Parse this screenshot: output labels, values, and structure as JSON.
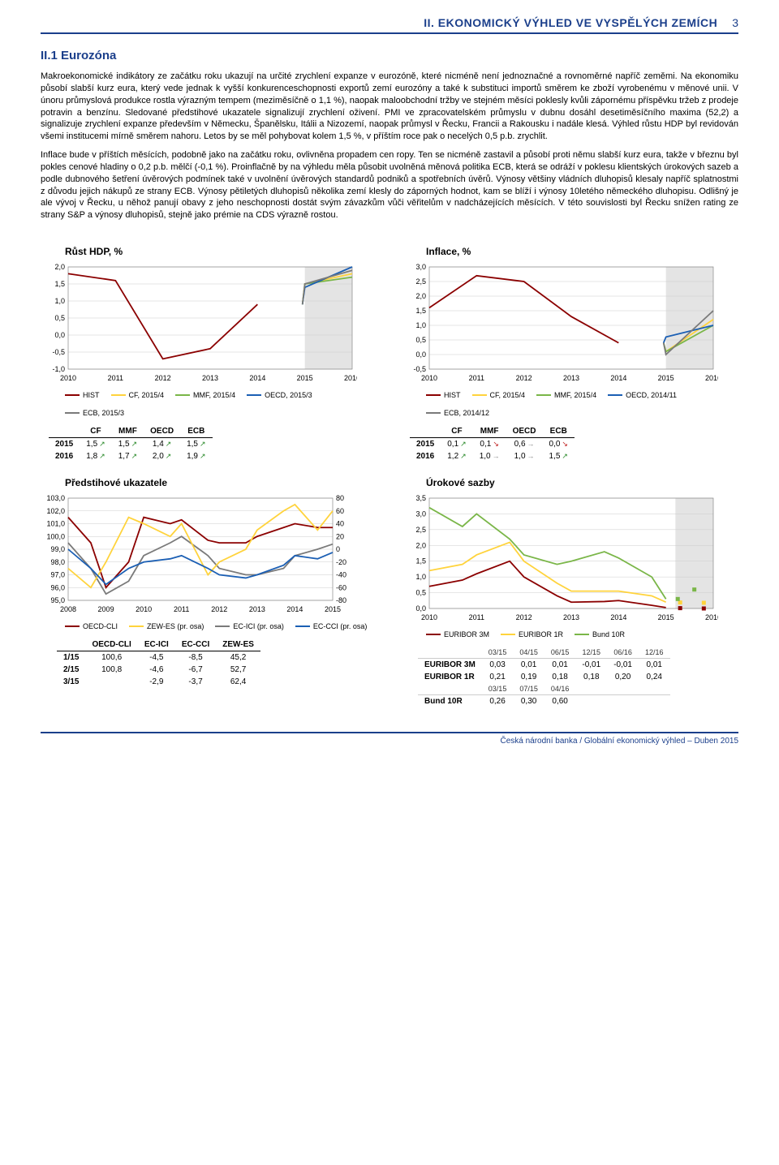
{
  "header": {
    "title": "II. EKONOMICKÝ VÝHLED VE VYSPĚLÝCH ZEMÍCH",
    "page_number": "3"
  },
  "section": {
    "heading": "II.1 Eurozóna",
    "paragraphs": [
      "Makroekonomické indikátory ze začátku roku ukazují na určité zrychlení expanze v eurozóně, které nicméně není jednoznačné a rovnoměrné napříč zeměmi. Na ekonomiku působí slabší kurz eura, který vede jednak k vyšší konkurenceschopnosti exportů zemí eurozóny a také k substituci importů směrem ke zboží vyrobenému v měnové unii. V únoru průmyslová produkce rostla výrazným tempem (meziměsíčně o 1,1 %), naopak maloobchodní tržby ve stejném měsíci poklesly kvůli zápornému příspěvku tržeb z prodeje potravin a benzínu. Sledované předstihové ukazatele signalizují zrychlení oživení. PMI ve zpracovatelském průmyslu v dubnu dosáhl desetiměsíčního maxima (52,2) a signalizuje zrychlení expanze především v Německu, Španělsku, Itálii a Nizozemí, naopak průmysl v Řecku, Francii a Rakousku i nadále klesá. Výhled růstu HDP byl revidován všemi institucemi mírně směrem nahoru. Letos by se měl pohybovat kolem 1,5 %, v příštím roce pak o necelých 0,5 p.b. zrychlit.",
      "Inflace bude v příštích měsících, podobně jako na začátku roku, ovlivněna propadem cen ropy. Ten se nicméně zastavil a působí proti němu slabší kurz eura, takže v březnu byl pokles cenové hladiny o 0,2 p.b. mělčí (-0,1 %). Proinflačně by na výhledu měla působit uvolněná měnová politika ECB, která se odráží v poklesu klientských úrokových sazeb a podle dubnového šetření úvěrových podmínek také v uvolnění úvěrových standardů podniků a spotřebních úvěrů. Výnosy většiny vládních dluhopisů klesaly napříč splatnostmi z důvodu jejich nákupů ze strany ECB. Výnosy pětiletých dluhopisů několika zemí klesly do záporných hodnot, kam se blíží i výnosy 10letého německého dluhopisu. Odlišný je ale vývoj v Řecku, u něhož panují obavy z jeho neschopnosti dostát svým závazkům vůči věřitelům v nadcházejících měsících. V této souvislosti byl Řecku snížen rating ze strany S&P a výnosy dluhopisů, stejně jako prémie na CDS výrazně rostou."
    ]
  },
  "gdp_chart": {
    "title": "Růst HDP, %",
    "x_years": [
      2010,
      2011,
      2012,
      2013,
      2014,
      2015,
      2016
    ],
    "ylim": [
      -1.0,
      2.0
    ],
    "yticks": [
      -1.0,
      -0.5,
      0.0,
      0.5,
      1.0,
      1.5,
      2.0
    ],
    "forecast_start": 2015,
    "series": {
      "HIST": {
        "color": "#8b0000",
        "points": [
          [
            2010,
            1.8
          ],
          [
            2011,
            1.6
          ],
          [
            2012,
            -0.7
          ],
          [
            2013,
            -0.4
          ],
          [
            2014,
            0.9
          ]
        ]
      },
      "CF_2015_4": {
        "color": "#ffd33c",
        "points": [
          [
            2014.95,
            0.9
          ],
          [
            2015,
            1.5
          ],
          [
            2016,
            1.8
          ]
        ]
      },
      "MMF_2015_4": {
        "color": "#7ab648",
        "points": [
          [
            2014.95,
            0.9
          ],
          [
            2015,
            1.5
          ],
          [
            2016,
            1.7
          ]
        ]
      },
      "OECD_2015_3": {
        "color": "#1b5fb4",
        "points": [
          [
            2014.95,
            0.9
          ],
          [
            2015,
            1.4
          ],
          [
            2016,
            2.0
          ]
        ]
      },
      "ECB_2015_3": {
        "color": "#7a7a7a",
        "points": [
          [
            2014.95,
            0.9
          ],
          [
            2015,
            1.5
          ],
          [
            2016,
            1.9
          ]
        ]
      }
    },
    "legend": [
      {
        "label": "HIST",
        "color": "#8b0000"
      },
      {
        "label": "CF, 2015/4",
        "color": "#ffd33c"
      },
      {
        "label": "MMF, 2015/4",
        "color": "#7ab648"
      },
      {
        "label": "OECD, 2015/3",
        "color": "#1b5fb4"
      },
      {
        "label": "ECB, 2015/3",
        "color": "#7a7a7a"
      }
    ],
    "table": {
      "columns": [
        "CF",
        "MMF",
        "OECD",
        "ECB"
      ],
      "rows": [
        {
          "year": "2015",
          "vals": [
            "1,5",
            "1,5",
            "1,4",
            "1,5"
          ],
          "arrows": [
            "up",
            "up",
            "up",
            "up"
          ]
        },
        {
          "year": "2016",
          "vals": [
            "1,8",
            "1,7",
            "2,0",
            "1,9"
          ],
          "arrows": [
            "up",
            "up",
            "up",
            "up"
          ]
        }
      ]
    }
  },
  "inflation_chart": {
    "title": "Inflace, %",
    "x_years": [
      2010,
      2011,
      2012,
      2013,
      2014,
      2015,
      2016
    ],
    "ylim": [
      -0.5,
      3.0
    ],
    "yticks": [
      -0.5,
      0.0,
      0.5,
      1.0,
      1.5,
      2.0,
      2.5,
      3.0
    ],
    "forecast_start": 2015,
    "series": {
      "HIST": {
        "color": "#8b0000",
        "points": [
          [
            2010,
            1.6
          ],
          [
            2011,
            2.7
          ],
          [
            2012,
            2.5
          ],
          [
            2013,
            1.3
          ],
          [
            2014,
            0.4
          ]
        ]
      },
      "CF_2015_4": {
        "color": "#ffd33c",
        "points": [
          [
            2014.95,
            0.4
          ],
          [
            2015,
            0.1
          ],
          [
            2016,
            1.2
          ]
        ]
      },
      "MMF_2015_4": {
        "color": "#7ab648",
        "points": [
          [
            2014.95,
            0.4
          ],
          [
            2015,
            0.1
          ],
          [
            2016,
            1.0
          ]
        ]
      },
      "OECD_2014_11": {
        "color": "#1b5fb4",
        "points": [
          [
            2014.95,
            0.4
          ],
          [
            2015,
            0.6
          ],
          [
            2016,
            1.0
          ]
        ]
      },
      "ECB_2014_12": {
        "color": "#7a7a7a",
        "points": [
          [
            2014.95,
            0.4
          ],
          [
            2015,
            0.0
          ],
          [
            2016,
            1.5
          ]
        ]
      }
    },
    "legend": [
      {
        "label": "HIST",
        "color": "#8b0000"
      },
      {
        "label": "CF, 2015/4",
        "color": "#ffd33c"
      },
      {
        "label": "MMF, 2015/4",
        "color": "#7ab648"
      },
      {
        "label": "OECD, 2014/11",
        "color": "#1b5fb4"
      },
      {
        "label": "ECB, 2014/12",
        "color": "#7a7a7a"
      }
    ],
    "table": {
      "columns": [
        "CF",
        "MMF",
        "OECD",
        "ECB"
      ],
      "rows": [
        {
          "year": "2015",
          "vals": [
            "0,1",
            "0,1",
            "0,6",
            "0,0"
          ],
          "arrows": [
            "up",
            "down",
            "flat",
            "down"
          ]
        },
        {
          "year": "2016",
          "vals": [
            "1,2",
            "1,0",
            "1,0",
            "1,5"
          ],
          "arrows": [
            "up",
            "flat",
            "flat",
            "up"
          ]
        }
      ]
    }
  },
  "leading_chart": {
    "title": "Předstihové ukazatele",
    "x_years": [
      2008,
      2009,
      2010,
      2011,
      2012,
      2013,
      2014,
      2015
    ],
    "ylim_left": [
      95,
      103
    ],
    "yticks_left": [
      95,
      96,
      97,
      98,
      99,
      100,
      101,
      102,
      103
    ],
    "ylim_right": [
      -80,
      80
    ],
    "yticks_right": [
      -80,
      -60,
      -40,
      -20,
      0,
      20,
      40,
      60,
      80
    ],
    "series_left": {
      "OECD_CLI": {
        "color": "#8b0000",
        "points": [
          [
            2008,
            101.5
          ],
          [
            2008.6,
            99.5
          ],
          [
            2009,
            96
          ],
          [
            2009.6,
            98
          ],
          [
            2010,
            101.5
          ],
          [
            2010.7,
            101
          ],
          [
            2011,
            101.3
          ],
          [
            2011.7,
            99.7
          ],
          [
            2012,
            99.5
          ],
          [
            2012.7,
            99.5
          ],
          [
            2013,
            100
          ],
          [
            2013.7,
            100.7
          ],
          [
            2014,
            101
          ],
          [
            2014.6,
            100.7
          ],
          [
            2015,
            100.7
          ]
        ]
      },
      "EC_ICI": {
        "color": "#7a7a7a",
        "points": [
          [
            2008,
            99.5
          ],
          [
            2008.6,
            97.5
          ],
          [
            2009,
            95.5
          ],
          [
            2009.6,
            96.5
          ],
          [
            2010,
            98.5
          ],
          [
            2010.7,
            99.5
          ],
          [
            2011,
            100
          ],
          [
            2011.7,
            98.5
          ],
          [
            2012,
            97.5
          ],
          [
            2012.7,
            97
          ],
          [
            2013,
            97
          ],
          [
            2013.7,
            97.5
          ],
          [
            2014,
            98.5
          ],
          [
            2014.6,
            99
          ],
          [
            2015,
            99.4
          ]
        ]
      }
    },
    "series_right": {
      "ZEW_ES": {
        "color": "#ffd33c",
        "points": [
          [
            2008,
            -30
          ],
          [
            2008.6,
            -60
          ],
          [
            2009,
            -20
          ],
          [
            2009.6,
            50
          ],
          [
            2010,
            40
          ],
          [
            2010.7,
            20
          ],
          [
            2011,
            40
          ],
          [
            2011.7,
            -40
          ],
          [
            2012,
            -20
          ],
          [
            2012.7,
            0
          ],
          [
            2013,
            30
          ],
          [
            2013.7,
            60
          ],
          [
            2014,
            70
          ],
          [
            2014.6,
            30
          ],
          [
            2015,
            60
          ]
        ]
      },
      "EC_CCI": {
        "color": "#1b5fb4",
        "points": [
          [
            2008,
            0
          ],
          [
            2008.6,
            -30
          ],
          [
            2009,
            -55
          ],
          [
            2009.6,
            -30
          ],
          [
            2010,
            -20
          ],
          [
            2010.7,
            -15
          ],
          [
            2011,
            -10
          ],
          [
            2011.7,
            -30
          ],
          [
            2012,
            -40
          ],
          [
            2012.7,
            -45
          ],
          [
            2013,
            -40
          ],
          [
            2013.7,
            -25
          ],
          [
            2014,
            -10
          ],
          [
            2014.6,
            -15
          ],
          [
            2015,
            -5
          ]
        ]
      }
    },
    "legend": [
      {
        "label": "OECD-CLI",
        "color": "#8b0000"
      },
      {
        "label": "ZEW-ES (pr. osa)",
        "color": "#ffd33c"
      },
      {
        "label": "EC-ICI (pr. osa)",
        "color": "#7a7a7a"
      },
      {
        "label": "EC-CCI (pr. osa)",
        "color": "#1b5fb4"
      }
    ],
    "table": {
      "columns": [
        "OECD-CLI",
        "EC-ICI",
        "EC-CCI",
        "ZEW-ES"
      ],
      "rows": [
        {
          "label": "1/15",
          "vals": [
            "100,6",
            "-4,5",
            "-8,5",
            "45,2"
          ]
        },
        {
          "label": "2/15",
          "vals": [
            "100,8",
            "-4,6",
            "-6,7",
            "52,7"
          ]
        },
        {
          "label": "3/15",
          "vals": [
            "",
            "-2,9",
            "-3,7",
            "62,4"
          ]
        }
      ]
    }
  },
  "rates_chart": {
    "title": "Úrokové sazby",
    "x_years": [
      2010,
      2011,
      2012,
      2013,
      2014,
      2015,
      2016
    ],
    "ylim": [
      0.0,
      3.5
    ],
    "yticks": [
      0.0,
      0.5,
      1.0,
      1.5,
      2.0,
      2.5,
      3.0,
      3.5
    ],
    "forecast_start": 2015.2,
    "series": {
      "EURIBOR_3M": {
        "color": "#8b0000",
        "points": [
          [
            2010,
            0.7
          ],
          [
            2010.7,
            0.9
          ],
          [
            2011,
            1.1
          ],
          [
            2011.7,
            1.5
          ],
          [
            2012,
            1.0
          ],
          [
            2012.7,
            0.4
          ],
          [
            2013,
            0.2
          ],
          [
            2013.7,
            0.22
          ],
          [
            2014,
            0.25
          ],
          [
            2014.7,
            0.1
          ],
          [
            2015,
            0.03
          ]
        ],
        "markers": [
          [
            2015.3,
            0.01
          ],
          [
            2015.8,
            0.0
          ],
          [
            2016.3,
            -0.01
          ],
          [
            2016.8,
            0.01
          ]
        ]
      },
      "EURIBOR_1R": {
        "color": "#ffd33c",
        "points": [
          [
            2010,
            1.2
          ],
          [
            2010.7,
            1.4
          ],
          [
            2011,
            1.7
          ],
          [
            2011.7,
            2.1
          ],
          [
            2012,
            1.5
          ],
          [
            2012.7,
            0.8
          ],
          [
            2013,
            0.55
          ],
          [
            2013.7,
            0.55
          ],
          [
            2014,
            0.55
          ],
          [
            2014.7,
            0.4
          ],
          [
            2015,
            0.2
          ]
        ],
        "markers": [
          [
            2015.3,
            0.19
          ],
          [
            2015.8,
            0.18
          ],
          [
            2016.3,
            0.2
          ],
          [
            2016.8,
            0.24
          ]
        ]
      },
      "Bund_10R": {
        "color": "#7ab648",
        "points": [
          [
            2010,
            3.2
          ],
          [
            2010.7,
            2.6
          ],
          [
            2011,
            3.0
          ],
          [
            2011.7,
            2.2
          ],
          [
            2012,
            1.7
          ],
          [
            2012.7,
            1.4
          ],
          [
            2013,
            1.5
          ],
          [
            2013.7,
            1.8
          ],
          [
            2014,
            1.6
          ],
          [
            2014.7,
            1.0
          ],
          [
            2015,
            0.3
          ]
        ],
        "markers": [
          [
            2015.25,
            0.3
          ],
          [
            2015.6,
            0.6
          ]
        ]
      }
    },
    "legend": [
      {
        "label": "EURIBOR 3M",
        "color": "#8b0000"
      },
      {
        "label": "EURIBOR 1R",
        "color": "#ffd33c"
      },
      {
        "label": "Bund 10R",
        "color": "#7ab648"
      }
    ],
    "table": {
      "date_header": [
        "03/15",
        "04/15",
        "06/15",
        "12/15",
        "06/16",
        "12/16"
      ],
      "rows": [
        {
          "label": "EURIBOR 3M",
          "vals": [
            "0,03",
            "0,01",
            "0,01",
            "-0,01",
            "-0,01",
            "0,01"
          ]
        },
        {
          "label": "EURIBOR 1R",
          "vals": [
            "0,21",
            "0,19",
            "0,18",
            "0,18",
            "0,20",
            "0,24"
          ]
        }
      ],
      "date_header2": [
        "03/15",
        "07/15",
        "04/16"
      ],
      "rows2": [
        {
          "label": "Bund 10R",
          "vals": [
            "0,26",
            "0,30",
            "0,60"
          ]
        }
      ]
    }
  },
  "footer": "Česká národní banka / Globální ekonomický výhled – Duben 2015"
}
